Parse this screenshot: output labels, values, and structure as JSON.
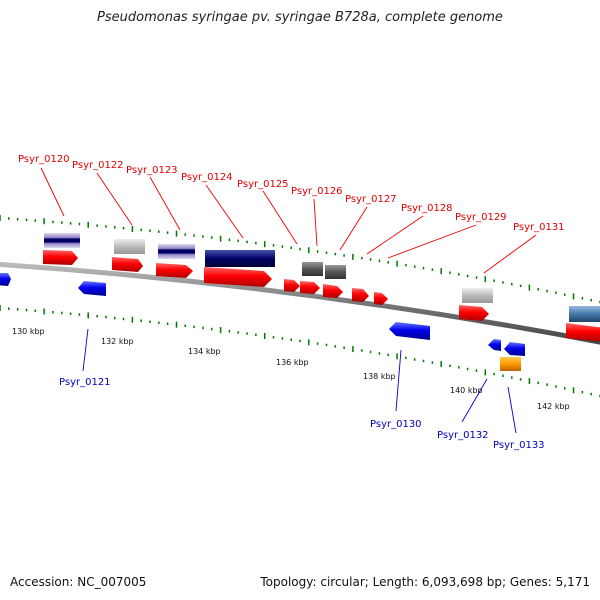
{
  "title": "Pseudomonas syringae pv. syringae B728a, complete genome",
  "accession_text": "Accession: NC_007005",
  "summary_text": "Topology: circular; Length: 6,093,698 bp; Genes: 5,171",
  "colors": {
    "forward": "#ff0000",
    "reverse": "#0000ff",
    "backbone": "#808080",
    "tick": "#007700",
    "label_forward": "#dd0000",
    "label_reverse": "#0000bb"
  },
  "ruler_labels": [
    "130 kbp",
    "132 kbp",
    "134 kbp",
    "136 kbp",
    "138 kbp",
    "140 kbp",
    "142 kbp"
  ],
  "forward_labels": [
    "Psyr_0120",
    "Psyr_0122",
    "Psyr_0123",
    "Psyr_0124",
    "Psyr_0125",
    "Psyr_0126",
    "Psyr_0127",
    "Psyr_0128",
    "Psyr_0129",
    "Psyr_0131"
  ],
  "reverse_labels": [
    "Psyr_0121",
    "Psyr_0130",
    "Psyr_0132",
    "Psyr_0133"
  ]
}
